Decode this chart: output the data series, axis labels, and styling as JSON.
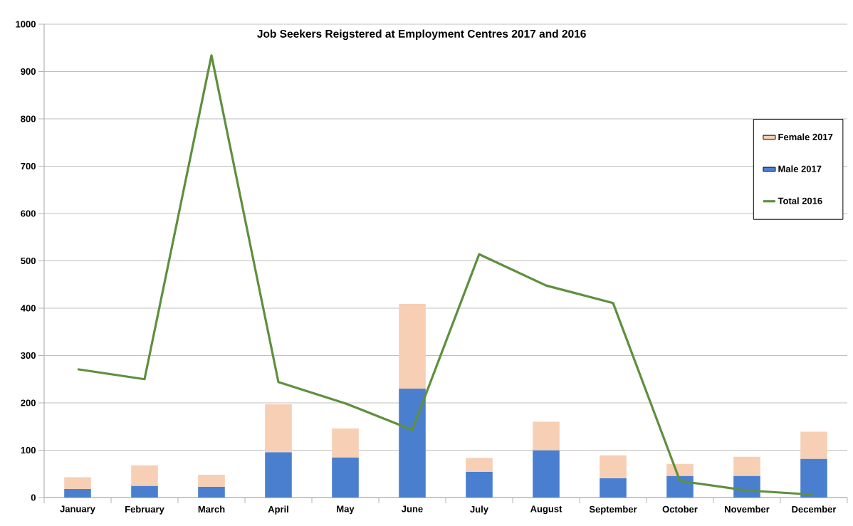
{
  "chart_data": {
    "type": "bar",
    "title": "Job Seekers Reigstered at Employment Centres 2017 and 2016",
    "categories": [
      "January",
      "February",
      "March",
      "April",
      "May",
      "June",
      "July",
      "August",
      "September",
      "October",
      "November",
      "December"
    ],
    "stacked": true,
    "series": [
      {
        "name": "Male 2017",
        "color": "#4a7fcf",
        "values": [
          18,
          25,
          23,
          96,
          85,
          230,
          54,
          100,
          41,
          46,
          46,
          82
        ]
      },
      {
        "name": "Female 2017",
        "color": "#f7cfb4",
        "values": [
          25,
          43,
          25,
          101,
          61,
          179,
          30,
          60,
          48,
          25,
          40,
          57
        ]
      },
      {
        "name": "Total 2016",
        "type": "line",
        "color": "#5f8f3e",
        "values": [
          271,
          250,
          934,
          244,
          199,
          143,
          514,
          448,
          411,
          35,
          15,
          6
        ]
      }
    ],
    "ylim": [
      0,
      1000
    ],
    "yticks": [
      0,
      100,
      200,
      300,
      400,
      500,
      600,
      700,
      800,
      900,
      1000
    ],
    "grid": "y",
    "legend": "right"
  }
}
